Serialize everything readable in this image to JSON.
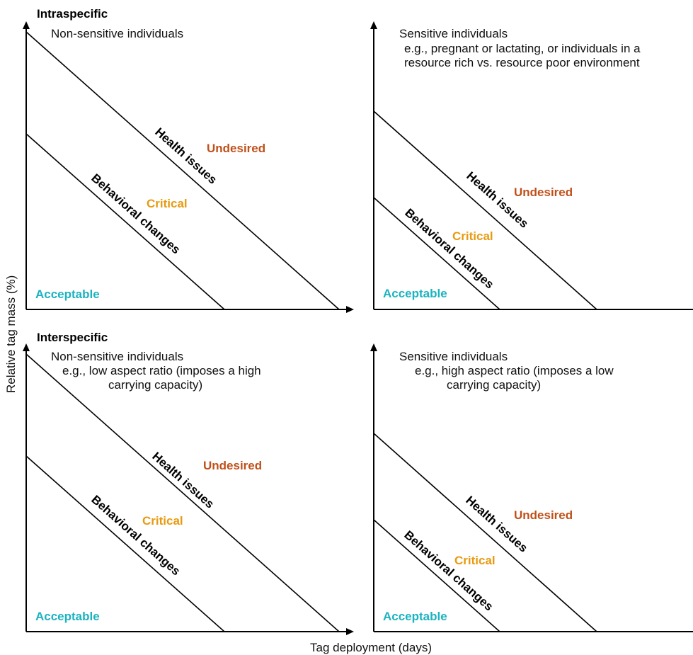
{
  "sections": {
    "intra": "Intraspecific",
    "inter": "Interspecific"
  },
  "axes": {
    "y_label": "Relative tag mass (%)",
    "x_label": "Tag deployment (days)"
  },
  "zones": {
    "undesired": "Undesired",
    "critical": "Critical",
    "acceptable": "Acceptable",
    "health_line": "Health issues",
    "behavior_line": "Behavioral changes"
  },
  "panels": {
    "p1": {
      "title": "Non-sensitive individuals"
    },
    "p2": {
      "title": "Sensitive individuals",
      "desc1": "e.g., pregnant or lactating, or individuals in a",
      "desc2": "resource rich vs. resource poor environment"
    },
    "p3": {
      "title": "Non-sensitive individuals",
      "desc1": "e.g., low aspect ratio (imposes a high",
      "desc2": "carrying capacity)"
    },
    "p4": {
      "title": "Sensitive individuals",
      "desc1": "e.g., high aspect ratio (imposes a low",
      "desc2": "carrying capacity)"
    }
  },
  "colors": {
    "undesired": "#c0501a",
    "critical": "#e89a10",
    "acceptable": "#1ab3c0"
  }
}
